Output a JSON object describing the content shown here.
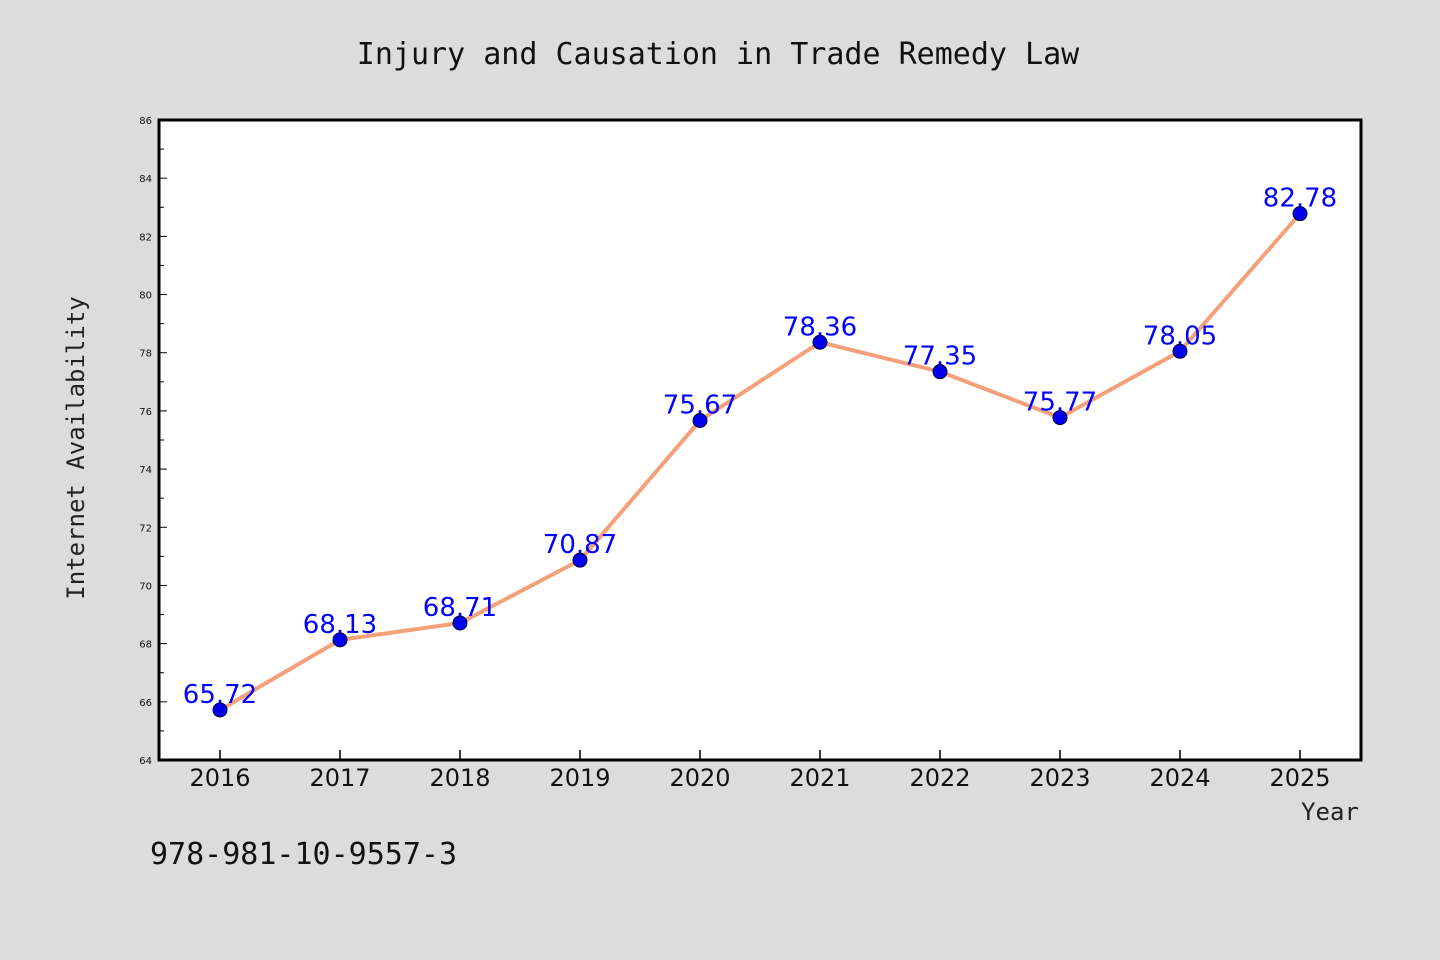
{
  "chart_data": {
    "type": "line",
    "title": "Injury and Causation in Trade Remedy Law",
    "xlabel": "Year",
    "ylabel": "Internet Availability",
    "categories": [
      "2016",
      "2017",
      "2018",
      "2019",
      "2020",
      "2021",
      "2022",
      "2023",
      "2024",
      "2025"
    ],
    "values": [
      65.72,
      68.13,
      68.71,
      70.87,
      75.67,
      78.36,
      77.35,
      75.77,
      78.05,
      82.78
    ],
    "data_labels": [
      "65.72",
      "68.13",
      "68.71",
      "70.87",
      "75.67",
      "78.36",
      "77.35",
      "75.77",
      "78.05",
      "82.78"
    ],
    "ylim": [
      64,
      86
    ],
    "yticks": [
      64,
      66,
      68,
      70,
      72,
      74,
      76,
      78,
      80,
      82,
      84,
      86
    ],
    "grid": false,
    "line_color": "#f4a07a",
    "marker_color": "#0000ee",
    "label_color": "#0000ff",
    "footnote": "978-981-10-9557-3"
  }
}
